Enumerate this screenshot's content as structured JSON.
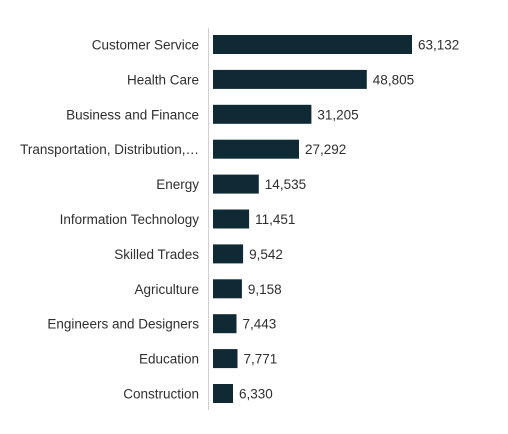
{
  "chart_data": {
    "type": "bar",
    "orientation": "horizontal",
    "categories": [
      "Customer Service",
      "Health Care",
      "Business and Finance",
      "Transportation, Distribution,…",
      "Energy",
      "Information Technology",
      "Skilled Trades",
      "Agriculture",
      "Engineers and Designers",
      "Education",
      "Construction"
    ],
    "values": [
      63132,
      48805,
      31205,
      27292,
      14535,
      11451,
      9542,
      9158,
      7443,
      7771,
      6330
    ],
    "value_labels": [
      "63,132",
      "48,805",
      "31,205",
      "27,292",
      "14,535",
      "11,451",
      "9,542",
      "9,158",
      "7,443",
      "7,771",
      "6,330"
    ],
    "title": "",
    "xlabel": "",
    "ylabel": "",
    "xlim": [
      0,
      63132
    ],
    "grid": false,
    "legend": "none",
    "bar_color": "#0f2a35",
    "axis_color": "#d0d0d0",
    "text_color": "#2f2f2f"
  }
}
